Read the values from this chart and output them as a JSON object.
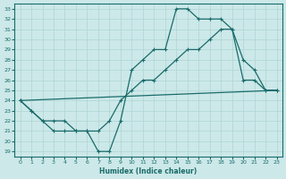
{
  "xlabel": "Humidex (Indice chaleur)",
  "xlim": [
    -0.5,
    23.5
  ],
  "ylim": [
    18.5,
    33.5
  ],
  "xticks": [
    0,
    1,
    2,
    3,
    4,
    5,
    6,
    7,
    8,
    9,
    10,
    11,
    12,
    13,
    14,
    15,
    16,
    17,
    18,
    19,
    20,
    21,
    22,
    23
  ],
  "yticks": [
    19,
    20,
    21,
    22,
    23,
    24,
    25,
    26,
    27,
    28,
    29,
    30,
    31,
    32,
    33
  ],
  "bg_color": "#cce8e8",
  "line_color": "#1a6b6b",
  "grid_color": "#aed4d4",
  "line1_x": [
    0,
    1,
    2,
    3,
    4,
    5,
    6,
    7,
    8,
    9,
    10,
    11,
    12,
    13,
    14,
    15,
    16,
    17,
    18,
    19,
    20,
    21,
    22,
    23
  ],
  "line1_y": [
    24,
    23,
    22,
    21,
    21,
    21,
    21,
    19,
    19,
    22,
    27,
    28,
    29,
    29,
    33,
    33,
    32,
    32,
    32,
    31,
    28,
    27,
    25,
    25
  ],
  "line2_x": [
    0,
    1,
    2,
    3,
    4,
    5,
    6,
    7,
    8,
    9,
    10,
    11,
    12,
    13,
    14,
    15,
    16,
    17,
    18,
    19,
    20,
    21,
    22,
    23
  ],
  "line2_y": [
    24,
    23,
    22,
    22,
    22,
    21,
    21,
    21,
    22,
    24,
    25,
    26,
    26,
    27,
    28,
    29,
    29,
    30,
    31,
    31,
    26,
    26,
    25,
    25
  ],
  "line3_x": [
    0,
    23
  ],
  "line3_y": [
    24,
    25
  ]
}
